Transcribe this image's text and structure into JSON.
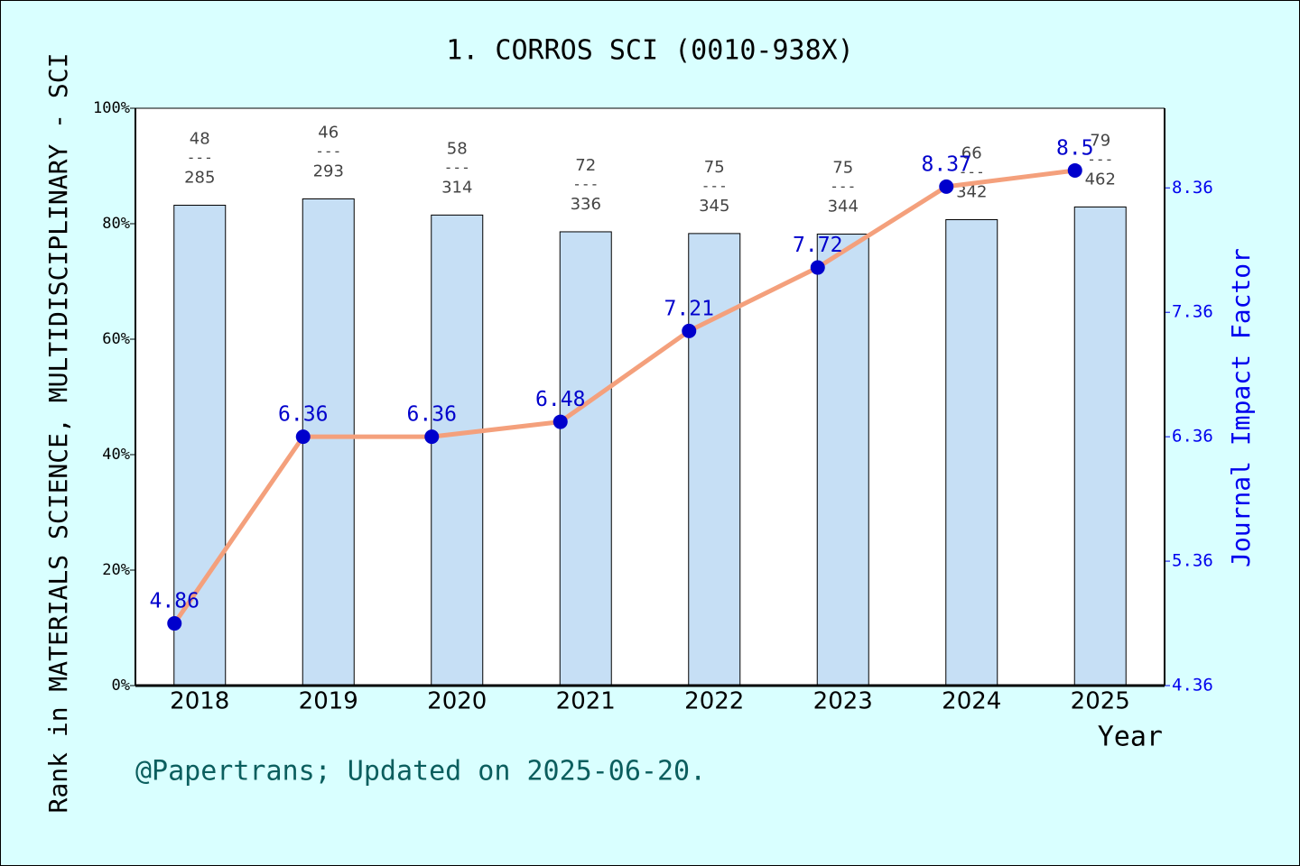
{
  "chart_data": {
    "type": "bar",
    "title": "1. CORROS SCI (0010-938X)",
    "x_label": "Year",
    "y_label": "Rank in MATERIALS SCIENCE, MULTIDISCIPLINARY - SCI",
    "y2_label": "Journal Impact Factor",
    "footer": "@Papertrans; Updated on 2025-06-20.",
    "categories": [
      "2018",
      "2019",
      "2020",
      "2021",
      "2022",
      "2023",
      "2024",
      "2025"
    ],
    "ylim": [
      0,
      100
    ],
    "yticks": [
      {
        "value": 0,
        "label": "0%"
      },
      {
        "value": 20,
        "label": "20%"
      },
      {
        "value": 40,
        "label": "40%"
      },
      {
        "value": 60,
        "label": "60%"
      },
      {
        "value": 80,
        "label": "80%"
      },
      {
        "value": 100,
        "label": "100%"
      }
    ],
    "y2lim": [
      4.36,
      9.0
    ],
    "y2ticks": [
      4.36,
      5.36,
      6.36,
      7.36,
      8.36
    ],
    "series": [
      {
        "type": "bar",
        "color": "#c6dff5",
        "values": [
          83.2,
          84.3,
          81.5,
          78.6,
          78.3,
          78.2,
          80.7,
          82.9
        ],
        "ranks": [
          48,
          46,
          58,
          72,
          75,
          75,
          66,
          79
        ],
        "totals": [
          285,
          293,
          314,
          336,
          345,
          344,
          342,
          462
        ],
        "separator": "---"
      },
      {
        "type": "line",
        "axis": "y2",
        "color": "#f4a07c",
        "marker_color": "#0000cc",
        "values": [
          4.86,
          6.36,
          6.36,
          6.48,
          7.21,
          7.72,
          8.37,
          8.5
        ]
      }
    ]
  }
}
